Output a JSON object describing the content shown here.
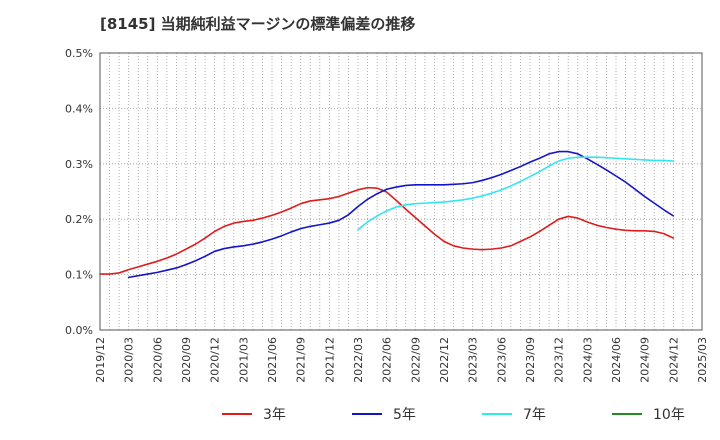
{
  "chart_data": {
    "type": "line",
    "title": "[8145]  当期純利益マージンの標準偏差の推移",
    "xlabel": "",
    "ylabel": "",
    "x_ticks": [
      "2019/12",
      "2020/03",
      "2020/06",
      "2020/09",
      "2020/12",
      "2021/03",
      "2021/06",
      "2021/09",
      "2021/12",
      "2022/03",
      "2022/06",
      "2022/09",
      "2022/12",
      "2023/03",
      "2023/06",
      "2023/09",
      "2023/12",
      "2024/03",
      "2024/06",
      "2024/09",
      "2024/12",
      "2025/03"
    ],
    "ylim": [
      0,
      0.5
    ],
    "y_ticks": [
      0.0,
      0.1,
      0.2,
      0.3,
      0.4,
      0.5
    ],
    "y_tick_labels": [
      "0.0%",
      "0.1%",
      "0.2%",
      "0.3%",
      "0.4%",
      "0.5%"
    ],
    "grid": true,
    "legend_position": "bottom",
    "colors": {
      "s3": "#dd1c1c",
      "s5": "#1414c8",
      "s7": "#32e6f0",
      "s10": "#228b22"
    },
    "series": [
      {
        "name": "3年",
        "color": "#dd1c1c",
        "points": [
          [
            "2019/12",
            0.101
          ],
          [
            "2020/01",
            0.101
          ],
          [
            "2020/02",
            0.103
          ],
          [
            "2020/03",
            0.109
          ],
          [
            "2020/04",
            0.114
          ],
          [
            "2020/05",
            0.119
          ],
          [
            "2020/06",
            0.124
          ],
          [
            "2020/07",
            0.13
          ],
          [
            "2020/08",
            0.137
          ],
          [
            "2020/09",
            0.146
          ],
          [
            "2020/10",
            0.155
          ],
          [
            "2020/11",
            0.166
          ],
          [
            "2020/12",
            0.178
          ],
          [
            "2021/01",
            0.187
          ],
          [
            "2021/02",
            0.193
          ],
          [
            "2021/03",
            0.196
          ],
          [
            "2021/04",
            0.198
          ],
          [
            "2021/05",
            0.202
          ],
          [
            "2021/06",
            0.207
          ],
          [
            "2021/07",
            0.213
          ],
          [
            "2021/08",
            0.22
          ],
          [
            "2021/09",
            0.228
          ],
          [
            "2021/10",
            0.233
          ],
          [
            "2021/11",
            0.235
          ],
          [
            "2021/12",
            0.237
          ],
          [
            "2022/01",
            0.241
          ],
          [
            "2022/02",
            0.247
          ],
          [
            "2022/03",
            0.253
          ],
          [
            "2022/04",
            0.257
          ],
          [
            "2022/05",
            0.256
          ],
          [
            "2022/06",
            0.249
          ],
          [
            "2022/07",
            0.234
          ],
          [
            "2022/08",
            0.218
          ],
          [
            "2022/09",
            0.203
          ],
          [
            "2022/10",
            0.188
          ],
          [
            "2022/11",
            0.173
          ],
          [
            "2022/12",
            0.16
          ],
          [
            "2023/01",
            0.152
          ],
          [
            "2023/02",
            0.148
          ],
          [
            "2023/03",
            0.146
          ],
          [
            "2023/04",
            0.145
          ],
          [
            "2023/05",
            0.146
          ],
          [
            "2023/06",
            0.148
          ],
          [
            "2023/07",
            0.152
          ],
          [
            "2023/08",
            0.16
          ],
          [
            "2023/09",
            0.168
          ],
          [
            "2023/10",
            0.178
          ],
          [
            "2023/11",
            0.189
          ],
          [
            "2023/12",
            0.2
          ],
          [
            "2024/01",
            0.205
          ],
          [
            "2024/02",
            0.202
          ],
          [
            "2024/03",
            0.195
          ],
          [
            "2024/04",
            0.189
          ],
          [
            "2024/05",
            0.185
          ],
          [
            "2024/06",
            0.182
          ],
          [
            "2024/07",
            0.18
          ],
          [
            "2024/08",
            0.179
          ],
          [
            "2024/09",
            0.179
          ],
          [
            "2024/10",
            0.178
          ],
          [
            "2024/11",
            0.174
          ],
          [
            "2024/12",
            0.166
          ]
        ]
      },
      {
        "name": "5年",
        "color": "#1414c8",
        "points": [
          [
            "2020/03",
            0.095
          ],
          [
            "2020/04",
            0.098
          ],
          [
            "2020/05",
            0.101
          ],
          [
            "2020/06",
            0.104
          ],
          [
            "2020/07",
            0.108
          ],
          [
            "2020/08",
            0.112
          ],
          [
            "2020/09",
            0.118
          ],
          [
            "2020/10",
            0.125
          ],
          [
            "2020/11",
            0.133
          ],
          [
            "2020/12",
            0.142
          ],
          [
            "2021/01",
            0.147
          ],
          [
            "2021/02",
            0.15
          ],
          [
            "2021/03",
            0.152
          ],
          [
            "2021/04",
            0.155
          ],
          [
            "2021/05",
            0.159
          ],
          [
            "2021/06",
            0.164
          ],
          [
            "2021/07",
            0.17
          ],
          [
            "2021/08",
            0.177
          ],
          [
            "2021/09",
            0.183
          ],
          [
            "2021/10",
            0.187
          ],
          [
            "2021/11",
            0.19
          ],
          [
            "2021/12",
            0.193
          ],
          [
            "2022/01",
            0.198
          ],
          [
            "2022/02",
            0.208
          ],
          [
            "2022/03",
            0.223
          ],
          [
            "2022/04",
            0.236
          ],
          [
            "2022/05",
            0.246
          ],
          [
            "2022/06",
            0.254
          ],
          [
            "2022/07",
            0.258
          ],
          [
            "2022/08",
            0.261
          ],
          [
            "2022/09",
            0.262
          ],
          [
            "2022/10",
            0.262
          ],
          [
            "2022/11",
            0.262
          ],
          [
            "2022/12",
            0.262
          ],
          [
            "2023/01",
            0.263
          ],
          [
            "2023/02",
            0.264
          ],
          [
            "2023/03",
            0.266
          ],
          [
            "2023/04",
            0.27
          ],
          [
            "2023/05",
            0.275
          ],
          [
            "2023/06",
            0.281
          ],
          [
            "2023/07",
            0.288
          ],
          [
            "2023/08",
            0.295
          ],
          [
            "2023/09",
            0.303
          ],
          [
            "2023/10",
            0.31
          ],
          [
            "2023/11",
            0.318
          ],
          [
            "2023/12",
            0.322
          ],
          [
            "2024/01",
            0.322
          ],
          [
            "2024/02",
            0.318
          ],
          [
            "2024/03",
            0.309
          ],
          [
            "2024/04",
            0.299
          ],
          [
            "2024/05",
            0.289
          ],
          [
            "2024/06",
            0.278
          ],
          [
            "2024/07",
            0.267
          ],
          [
            "2024/08",
            0.254
          ],
          [
            "2024/09",
            0.241
          ],
          [
            "2024/10",
            0.229
          ],
          [
            "2024/11",
            0.217
          ],
          [
            "2024/12",
            0.206
          ]
        ]
      },
      {
        "name": "7年",
        "color": "#32e6f0",
        "points": [
          [
            "2022/03",
            0.181
          ],
          [
            "2022/04",
            0.195
          ],
          [
            "2022/05",
            0.206
          ],
          [
            "2022/06",
            0.215
          ],
          [
            "2022/07",
            0.222
          ],
          [
            "2022/08",
            0.226
          ],
          [
            "2022/09",
            0.228
          ],
          [
            "2022/10",
            0.229
          ],
          [
            "2022/11",
            0.23
          ],
          [
            "2022/12",
            0.231
          ],
          [
            "2023/01",
            0.233
          ],
          [
            "2023/02",
            0.235
          ],
          [
            "2023/03",
            0.238
          ],
          [
            "2023/04",
            0.242
          ],
          [
            "2023/05",
            0.247
          ],
          [
            "2023/06",
            0.253
          ],
          [
            "2023/07",
            0.26
          ],
          [
            "2023/08",
            0.268
          ],
          [
            "2023/09",
            0.277
          ],
          [
            "2023/10",
            0.286
          ],
          [
            "2023/11",
            0.296
          ],
          [
            "2023/12",
            0.305
          ],
          [
            "2024/01",
            0.31
          ],
          [
            "2024/02",
            0.312
          ],
          [
            "2024/03",
            0.312
          ],
          [
            "2024/04",
            0.312
          ],
          [
            "2024/05",
            0.311
          ],
          [
            "2024/06",
            0.31
          ],
          [
            "2024/07",
            0.309
          ],
          [
            "2024/08",
            0.308
          ],
          [
            "2024/09",
            0.307
          ],
          [
            "2024/10",
            0.306
          ],
          [
            "2024/11",
            0.306
          ],
          [
            "2024/12",
            0.305
          ]
        ]
      },
      {
        "name": "10年",
        "color": "#228b22",
        "points": []
      }
    ]
  }
}
